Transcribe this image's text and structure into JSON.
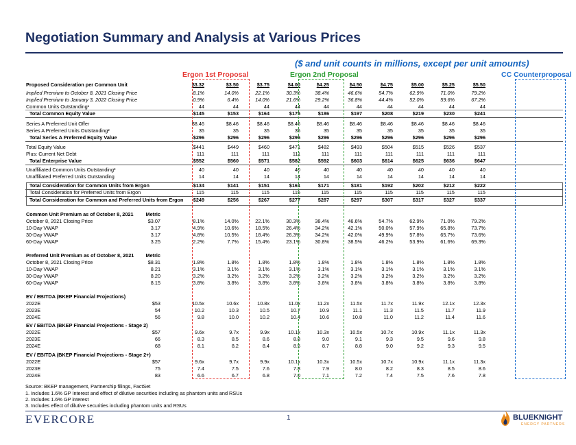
{
  "header": {
    "title": "Negotiation Summary and Analysis at Various Prices",
    "units_note": "($ and unit counts in millions, except per unit amounts)"
  },
  "proposals": {
    "ergon_1st": "Ergon 1st Proposal",
    "ergon_2nd": "Ergon 2nd Proposal",
    "cc_counter": "CC Counterproposal"
  },
  "colors": {
    "navy": "#1c2f63",
    "red": "#e53935",
    "green": "#2e9e34",
    "blue": "#1e6fd0",
    "orange": "#e98b1e"
  },
  "rows": [
    {
      "label": "Proposed Consideration per Common Unit",
      "metric": "",
      "values": [
        "$3.32",
        "$3.50",
        "$3.75",
        "$4.00",
        "$4.25",
        "$4.50",
        "$4.75",
        "$5.00",
        "$5.25",
        "$5.50"
      ]
    },
    {
      "label": "Implied Premium to October 8, 2021 Closing Price",
      "metric": "",
      "values": [
        "8.1%",
        "14.0%",
        "22.1%",
        "30.3%",
        "38.4%",
        "46.6%",
        "54.7%",
        "62.9%",
        "71.0%",
        "79.2%"
      ]
    },
    {
      "label": "Implied Premium to January 3, 2022 Closing Price",
      "metric": "",
      "values": [
        "0.9%",
        "6.4%",
        "14.0%",
        "21.6%",
        "29.2%",
        "36.8%",
        "44.4%",
        "52.0%",
        "59.6%",
        "67.2%"
      ]
    },
    {
      "label": "Common Units Outstanding¹",
      "metric": "",
      "values": [
        "44",
        "44",
        "44",
        "44",
        "44",
        "44",
        "44",
        "44",
        "44",
        "44"
      ]
    },
    {
      "label": "Total Common Equity Value",
      "metric": "",
      "values": [
        "$145",
        "$153",
        "$164",
        "$175",
        "$186",
        "$197",
        "$208",
        "$219",
        "$230",
        "$241"
      ]
    },
    {
      "label": "Series A Preferred Unit Offer",
      "metric": "",
      "values": [
        "$8.46",
        "$8.46",
        "$8.46",
        "$8.46",
        "$8.46",
        "$8.46",
        "$8.46",
        "$8.46",
        "$8.46",
        "$8.46"
      ]
    },
    {
      "label": "Series A Preferred Units Outstanding²",
      "metric": "",
      "values": [
        "35",
        "35",
        "35",
        "35",
        "35",
        "35",
        "35",
        "35",
        "35",
        "35"
      ]
    },
    {
      "label": "Total Series A Preferred Equity Value",
      "metric": "",
      "values": [
        "$296",
        "$296",
        "$296",
        "$296",
        "$296",
        "$296",
        "$296",
        "$296",
        "$296",
        "$296"
      ]
    },
    {
      "label": "Total Equity Value",
      "metric": "",
      "values": [
        "$441",
        "$449",
        "$460",
        "$471",
        "$482",
        "$493",
        "$504",
        "$515",
        "$526",
        "$537"
      ]
    },
    {
      "label": "Plus: Current Net Debt",
      "metric": "",
      "values": [
        "111",
        "111",
        "111",
        "111",
        "111",
        "111",
        "111",
        "111",
        "111",
        "111"
      ]
    },
    {
      "label": "Total Enterprise Value",
      "metric": "",
      "values": [
        "$552",
        "$560",
        "$571",
        "$582",
        "$592",
        "$603",
        "$614",
        "$625",
        "$636",
        "$647"
      ]
    },
    {
      "label": "Unaffiliated Common Units Outstanding³",
      "metric": "",
      "values": [
        "40",
        "40",
        "40",
        "40",
        "40",
        "40",
        "40",
        "40",
        "40",
        "40"
      ]
    },
    {
      "label": "Unaffiliated Preferred Units Outstanding",
      "metric": "",
      "values": [
        "14",
        "14",
        "14",
        "14",
        "14",
        "14",
        "14",
        "14",
        "14",
        "14"
      ]
    },
    {
      "label": "Total Consideration for Common Units from Ergon",
      "metric": "",
      "values": [
        "$134",
        "$141",
        "$151",
        "$161",
        "$171",
        "$181",
        "$192",
        "$202",
        "$212",
        "$222"
      ]
    },
    {
      "label": "Total Consideration for Preferred Units from Ergon",
      "metric": "",
      "values": [
        "115",
        "115",
        "115",
        "115",
        "115",
        "115",
        "115",
        "115",
        "115",
        "115"
      ]
    },
    {
      "label": "Total Consideration for Common and Preferred Units from Ergon",
      "metric": "",
      "values": [
        "$249",
        "$256",
        "$267",
        "$277",
        "$287",
        "$297",
        "$307",
        "$317",
        "$327",
        "$337"
      ]
    },
    {
      "label": "Common Unit Premium as of October 8, 2021",
      "metric": "Metric",
      "values": [
        "",
        "",
        "",
        "",
        "",
        "",
        "",
        "",
        "",
        ""
      ]
    },
    {
      "label": "October 8, 2021 Closing Price",
      "metric": "$3.07",
      "values": [
        "8.1%",
        "14.0%",
        "22.1%",
        "30.3%",
        "38.4%",
        "46.6%",
        "54.7%",
        "62.9%",
        "71.0%",
        "79.2%"
      ]
    },
    {
      "label": "10-Day VWAP",
      "metric": "3.17",
      "values": [
        "4.9%",
        "10.6%",
        "18.5%",
        "26.4%",
        "34.2%",
        "42.1%",
        "50.0%",
        "57.9%",
        "65.8%",
        "73.7%"
      ]
    },
    {
      "label": "30-Day VWAP",
      "metric": "3.17",
      "values": [
        "4.8%",
        "10.5%",
        "18.4%",
        "26.3%",
        "34.2%",
        "42.0%",
        "49.9%",
        "57.8%",
        "65.7%",
        "73.6%"
      ]
    },
    {
      "label": "60-Day VWAP",
      "metric": "3.25",
      "values": [
        "2.2%",
        "7.7%",
        "15.4%",
        "23.1%",
        "30.8%",
        "38.5%",
        "46.2%",
        "53.9%",
        "61.6%",
        "69.3%"
      ]
    },
    {
      "label": "Preferred Unit Premium as of October 8, 2021",
      "metric": "Metric",
      "values": [
        "",
        "",
        "",
        "",
        "",
        "",
        "",
        "",
        "",
        ""
      ]
    },
    {
      "label": "October 8, 2021 Closing Price",
      "metric": "$8.31",
      "values": [
        "1.8%",
        "1.8%",
        "1.8%",
        "1.8%",
        "1.8%",
        "1.8%",
        "1.8%",
        "1.8%",
        "1.8%",
        "1.8%"
      ]
    },
    {
      "label": "10-Day VWAP",
      "metric": "8.21",
      "values": [
        "3.1%",
        "3.1%",
        "3.1%",
        "3.1%",
        "3.1%",
        "3.1%",
        "3.1%",
        "3.1%",
        "3.1%",
        "3.1%"
      ]
    },
    {
      "label": "30-Day VWAP",
      "metric": "8.20",
      "values": [
        "3.2%",
        "3.2%",
        "3.2%",
        "3.2%",
        "3.2%",
        "3.2%",
        "3.2%",
        "3.2%",
        "3.2%",
        "3.2%"
      ]
    },
    {
      "label": "60-Day VWAP",
      "metric": "8.15",
      "values": [
        "3.8%",
        "3.8%",
        "3.8%",
        "3.8%",
        "3.8%",
        "3.8%",
        "3.8%",
        "3.8%",
        "3.8%",
        "3.8%"
      ]
    },
    {
      "label": "EV / EBITDA (BKEP Financial Projections)",
      "metric": "",
      "values": [
        "",
        "",
        "",
        "",
        "",
        "",
        "",
        "",
        "",
        ""
      ]
    },
    {
      "label": "2022E",
      "metric": "$53",
      "values": [
        "10.5x",
        "10.6x",
        "10.8x",
        "11.0x",
        "11.2x",
        "11.5x",
        "11.7x",
        "11.9x",
        "12.1x",
        "12.3x"
      ]
    },
    {
      "label": "2023E",
      "metric": "54",
      "values": [
        "10.2",
        "10.3",
        "10.5",
        "10.7",
        "10.9",
        "11.1",
        "11.3",
        "11.5",
        "11.7",
        "11.9"
      ]
    },
    {
      "label": "2024E",
      "metric": "56",
      "values": [
        "9.8",
        "10.0",
        "10.2",
        "10.4",
        "10.6",
        "10.8",
        "11.0",
        "11.2",
        "11.4",
        "11.6"
      ]
    },
    {
      "label": "EV / EBITDA (BKEP Financial Projections - Stage 2)",
      "metric": "",
      "values": [
        "",
        "",
        "",
        "",
        "",
        "",
        "",
        "",
        "",
        ""
      ]
    },
    {
      "label": "2022E",
      "metric": "$57",
      "values": [
        "9.6x",
        "9.7x",
        "9.9x",
        "10.1x",
        "10.3x",
        "10.5x",
        "10.7x",
        "10.9x",
        "11.1x",
        "11.3x"
      ]
    },
    {
      "label": "2023E",
      "metric": "66",
      "values": [
        "8.3",
        "8.5",
        "8.6",
        "8.8",
        "9.0",
        "9.1",
        "9.3",
        "9.5",
        "9.6",
        "9.8"
      ]
    },
    {
      "label": "2024E",
      "metric": "68",
      "values": [
        "8.1",
        "8.2",
        "8.4",
        "8.5",
        "8.7",
        "8.8",
        "9.0",
        "9.2",
        "9.3",
        "9.5"
      ]
    },
    {
      "label": "EV / EBITDA (BKEP Financial Projections - Stage 2+)",
      "metric": "",
      "values": [
        "",
        "",
        "",
        "",
        "",
        "",
        "",
        "",
        "",
        ""
      ]
    },
    {
      "label": "2022E",
      "metric": "$57",
      "values": [
        "9.6x",
        "9.7x",
        "9.9x",
        "10.1x",
        "10.3x",
        "10.5x",
        "10.7x",
        "10.9x",
        "11.1x",
        "11.3x"
      ]
    },
    {
      "label": "2023E",
      "metric": "75",
      "values": [
        "7.4",
        "7.5",
        "7.6",
        "7.8",
        "7.9",
        "8.0",
        "8.2",
        "8.3",
        "8.5",
        "8.6"
      ]
    },
    {
      "label": "2024E",
      "metric": "83",
      "values": [
        "6.6",
        "6.7",
        "6.8",
        "7.0",
        "7.1",
        "7.2",
        "7.4",
        "7.5",
        "7.6",
        "7.8"
      ]
    }
  ],
  "footnotes": {
    "source": "Source: BKEP management, Partnership filings, FactSet",
    "n1": "1.    Includes 1.6% GP Interest and effect of dilutive securities including as phantom units and RSUs",
    "n2": "2.    Includes 1.6% GP interest",
    "n3": "3.    Includes effect of dilutive securities including phantom units and RSUs"
  },
  "footer": {
    "logo": "EVERCORE",
    "page_number": "1",
    "partner_logo": "BLUEKNIGHT",
    "partner_sub": "ENERGY PARTNERS"
  }
}
